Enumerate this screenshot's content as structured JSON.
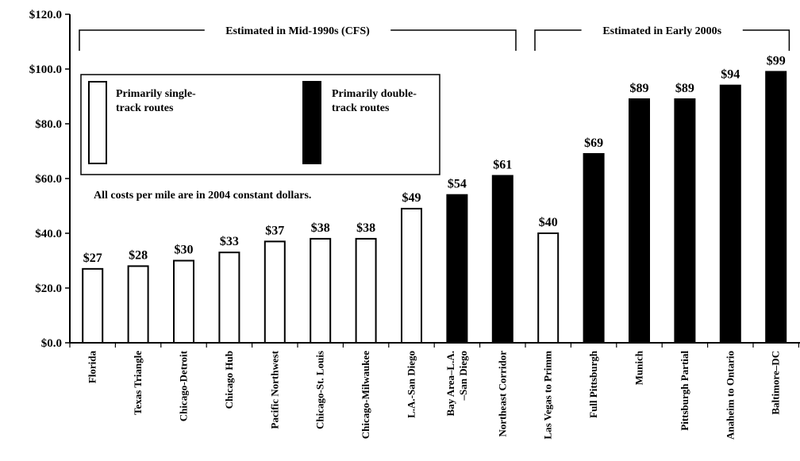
{
  "chart_data": {
    "type": "bar",
    "title": "",
    "xlabel": "",
    "ylabel": "",
    "ylim": [
      0,
      120
    ],
    "yticks": [
      0,
      20,
      40,
      60,
      80,
      100,
      120
    ],
    "ytick_labels": [
      "$0.0",
      "$20.0",
      "$40.0",
      "$60.0",
      "$80.0",
      "$100.0",
      "$120.0"
    ],
    "grid": false,
    "legend_position": "top-left",
    "categories": [
      [
        "Florida"
      ],
      [
        "Texas Triangle"
      ],
      [
        "Chicago-Detroit"
      ],
      [
        "Chicago Hub"
      ],
      [
        "Pacific Northwest"
      ],
      [
        "Chicago-St. Louis"
      ],
      [
        "Chicago-Milwaukee"
      ],
      [
        "L.A.-San Diego"
      ],
      [
        "Bay Area–L.A.",
        "–San Diego"
      ],
      [
        "Northeast Corridor"
      ],
      [
        "Las Vegas to Primm"
      ],
      [
        "Full Pittsburgh"
      ],
      [
        "Munich"
      ],
      [
        "Pittsburgh  Partial"
      ],
      [
        "Anaheim to Ontario"
      ],
      [
        "Baltimore–DC"
      ]
    ],
    "values": [
      27,
      28,
      30,
      33,
      37,
      38,
      38,
      49,
      54,
      61,
      40,
      69,
      89,
      89,
      94,
      99
    ],
    "value_labels": [
      "$27",
      "$28",
      "$30",
      "$33",
      "$37",
      "$38",
      "$38",
      "$49",
      "$54",
      "$61",
      "$40",
      "$69",
      "$89",
      "$89",
      "$94",
      "$99"
    ],
    "bar_types": [
      "single",
      "single",
      "single",
      "single",
      "single",
      "single",
      "single",
      "single",
      "double",
      "double",
      "single",
      "double",
      "double",
      "double",
      "double",
      "double"
    ],
    "legend": [
      {
        "key": "single",
        "lines": [
          "Primarily single-",
          "track routes"
        ],
        "fill": "#ffffff"
      },
      {
        "key": "double",
        "lines": [
          "Primarily double-",
          "track routes"
        ],
        "fill": "#000000"
      }
    ],
    "groups": [
      {
        "label": "Estimated in Mid-1990s (CFS)",
        "from": 0,
        "to": 9
      },
      {
        "label": "Estimated in Early 2000s",
        "from": 10,
        "to": 15
      }
    ],
    "annotations": [
      "All costs per mile are in 2004 constant dollars."
    ],
    "colors": {
      "single": "#ffffff",
      "double": "#000000",
      "outline": "#000000"
    }
  }
}
